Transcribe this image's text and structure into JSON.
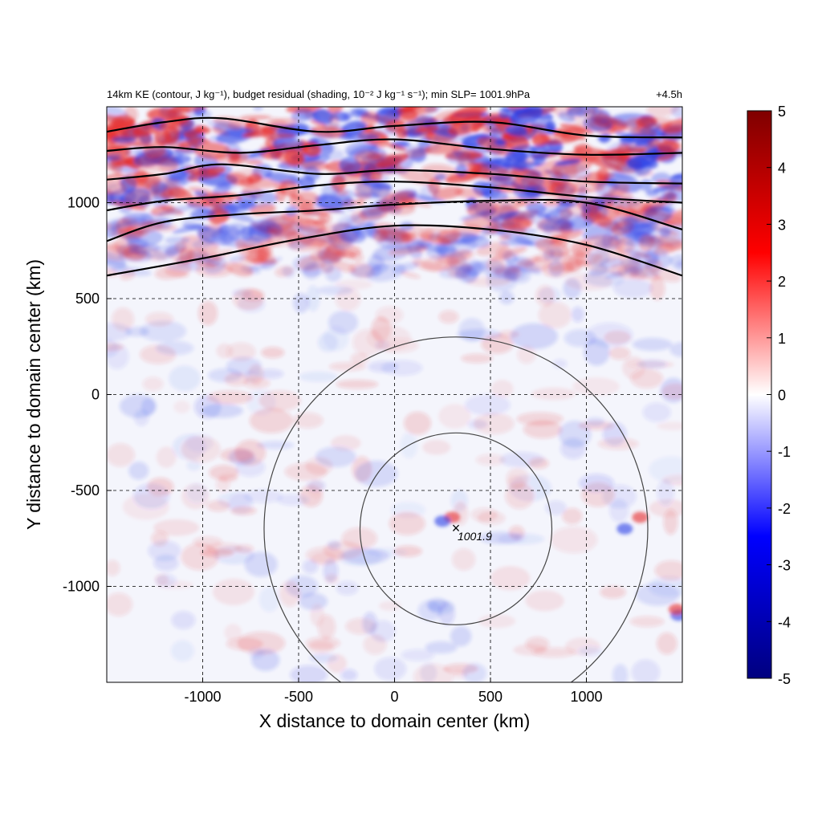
{
  "chart_data": {
    "type": "heatmap",
    "title": "14km KE (contour, J kg⁻¹), budget residual (shading, 10⁻² J kg⁻¹ s⁻¹); min SLP= 1001.9hPa",
    "time_label": "+4.5h",
    "xlabel": "X distance to domain center (km)",
    "ylabel": "Y distance to domain center (km)",
    "xlim": [
      -1500,
      1500
    ],
    "ylim": [
      -1500,
      1500
    ],
    "x_ticks": [
      -1000,
      -500,
      0,
      500,
      1000
    ],
    "y_ticks": [
      -1000,
      -500,
      0,
      500,
      1000
    ],
    "grid": true,
    "colorbar": {
      "min": -5,
      "max": 5,
      "ticks": [
        5,
        4,
        3,
        2,
        1,
        0,
        -1,
        -2,
        -3,
        -4,
        -5
      ],
      "colors": [
        "#00007f",
        "#0000ff",
        "#ffffff",
        "#ff0000",
        "#7f0000"
      ]
    },
    "storm_center": {
      "x": 320,
      "y": -700,
      "label": "1001.9",
      "marker": "×"
    },
    "range_rings_km": [
      500,
      1000
    ],
    "ke_contours_approx": [
      {
        "x": [
          -1500,
          -1000,
          -500,
          0,
          500,
          1000,
          1500
        ],
        "y": [
          620,
          710,
          810,
          880,
          860,
          780,
          620
        ]
      },
      {
        "x": [
          -1500,
          -1200,
          -800,
          -400,
          0,
          500,
          1000,
          1500
        ],
        "y": [
          800,
          900,
          940,
          960,
          990,
          1010,
          1000,
          860
        ]
      },
      {
        "x": [
          -1500,
          -1200,
          -800,
          -400,
          0,
          500,
          1000,
          1500
        ],
        "y": [
          960,
          1010,
          1040,
          1090,
          1110,
          1080,
          1030,
          1000
        ]
      },
      {
        "x": [
          -1500,
          -1200,
          -900,
          -400,
          0,
          500,
          1000,
          1500
        ],
        "y": [
          1120,
          1150,
          1200,
          1150,
          1170,
          1150,
          1110,
          1100
        ]
      },
      {
        "x": [
          -1500,
          -1200,
          -800,
          -400,
          0,
          500,
          1000,
          1500
        ],
        "y": [
          1270,
          1290,
          1260,
          1300,
          1330,
          1280,
          1250,
          1260
        ]
      },
      {
        "x": [
          -1500,
          -1200,
          -900,
          -400,
          0,
          500,
          1000,
          1500
        ],
        "y": [
          1370,
          1420,
          1440,
          1370,
          1400,
          1420,
          1350,
          1340
        ]
      }
    ]
  }
}
